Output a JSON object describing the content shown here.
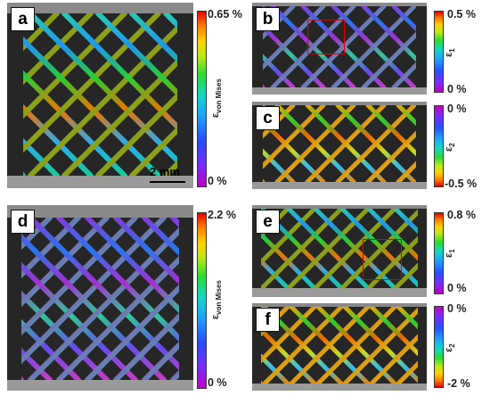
{
  "panels": {
    "a": {
      "letter": "a",
      "max": "0.65 %",
      "min": "0 %",
      "sym": "ε",
      "sub": "von Mises"
    },
    "b": {
      "letter": "b",
      "max": "0.5 %",
      "min": "0 %",
      "sym": "ε",
      "sub": "1"
    },
    "c": {
      "letter": "c",
      "max": "0 %",
      "min": "-0.5 %",
      "sym": "ε",
      "sub": "2"
    },
    "d": {
      "letter": "d",
      "max": "2.2 %",
      "min": "0 %",
      "sym": "ε",
      "sub": "von Mises"
    },
    "e": {
      "letter": "e",
      "max": "0.8 %",
      "min": "0 %",
      "sym": "ε",
      "sub": "1"
    },
    "f": {
      "letter": "f",
      "max": "0 %",
      "min": "-2 %",
      "sym": "ε",
      "sub": "2"
    }
  },
  "scale_bar": {
    "label": "2 mm"
  },
  "colors": {
    "lattice_a": "#2ac8b8",
    "lattice_d": "#8a50e8",
    "roi_box": "#e00000"
  }
}
